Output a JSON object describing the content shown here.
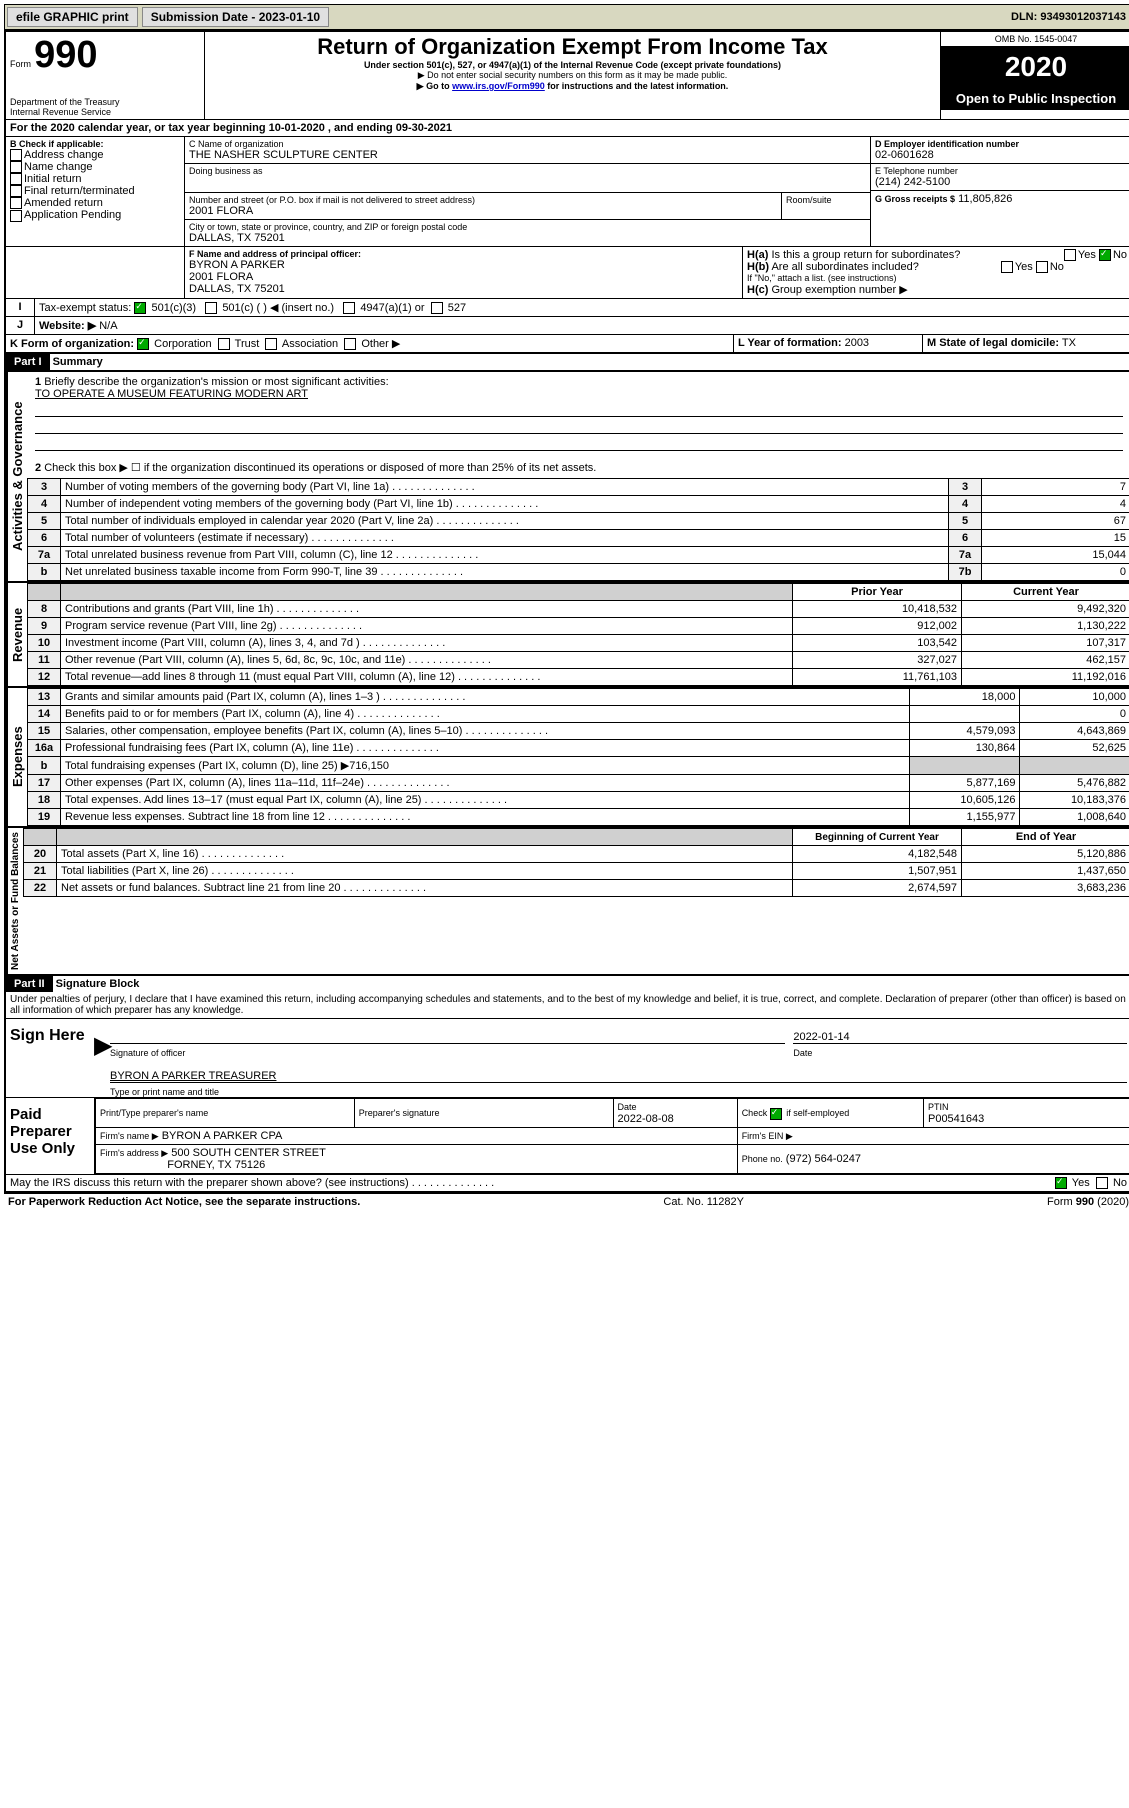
{
  "topbar": {
    "efile": "efile GRAPHIC print",
    "submission_label": "Submission Date - 2023-01-10",
    "dln_label": "DLN: 93493012037143"
  },
  "header": {
    "form_label": "Form",
    "form_number": "990",
    "dept": "Department of the Treasury\nInternal Revenue Service",
    "title": "Return of Organization Exempt From Income Tax",
    "subtitle": "Under section 501(c), 527, or 4947(a)(1) of the Internal Revenue Code (except private foundations)",
    "note1": "▶ Do not enter social security numbers on this form as it may be made public.",
    "note2_pre": "▶ Go to ",
    "note2_link": "www.irs.gov/Form990",
    "note2_post": " for instructions and the latest information.",
    "omb": "OMB No. 1545-0047",
    "year": "2020",
    "open_public": "Open to Public Inspection"
  },
  "line_a": "For the 2020 calendar year, or tax year beginning 10-01-2020   , and ending 09-30-2021",
  "section_b": {
    "label": "B Check if applicable:",
    "items": [
      "Address change",
      "Name change",
      "Initial return",
      "Final return/terminated",
      "Amended return",
      "Application Pending"
    ]
  },
  "section_c": {
    "name_label": "C Name of organization",
    "name": "THE NASHER SCULPTURE CENTER",
    "dba_label": "Doing business as",
    "street_label": "Number and street (or P.O. box if mail is not delivered to street address)",
    "room_label": "Room/suite",
    "street": "2001 FLORA",
    "city_label": "City or town, state or province, country, and ZIP or foreign postal code",
    "city": "DALLAS, TX  75201"
  },
  "section_d": {
    "label": "D Employer identification number",
    "value": "02-0601628"
  },
  "section_e": {
    "label": "E Telephone number",
    "value": "(214) 242-5100"
  },
  "section_g": {
    "label": "G Gross receipts $",
    "value": "11,805,826"
  },
  "section_f": {
    "label": "F Name and address of principal officer:",
    "name": "BYRON A PARKER",
    "street": "2001 FLORA",
    "city": "DALLAS, TX  75201"
  },
  "section_h": {
    "ha": "Is this a group return for subordinates?",
    "hb": "Are all subordinates included?",
    "hb_note": "If \"No,\" attach a list. (see instructions)",
    "hc": "Group exemption number ▶"
  },
  "section_i": {
    "label": "Tax-exempt status:",
    "opt1": "501(c)(3)",
    "opt2": "501(c) (   ) ◀ (insert no.)",
    "opt3": "4947(a)(1) or",
    "opt4": "527"
  },
  "section_j": {
    "label": "Website: ▶",
    "value": "N/A"
  },
  "section_k": {
    "label": "K Form of organization:",
    "opts": [
      "Corporation",
      "Trust",
      "Association",
      "Other ▶"
    ]
  },
  "section_l": {
    "label": "L Year of formation:",
    "value": "2003"
  },
  "section_m": {
    "label": "M State of legal domicile:",
    "value": "TX"
  },
  "part1": {
    "header": "Part I",
    "title": "Summary",
    "mission_label": "Briefly describe the organization's mission or most significant activities:",
    "mission": "TO OPERATE A MUSEUM FEATURING MODERN ART",
    "line2": "Check this box ▶ ☐ if the organization discontinued its operations or disposed of more than 25% of its net assets."
  },
  "governance_label": "Activities & Governance",
  "revenue_label": "Revenue",
  "expenses_label": "Expenses",
  "netassets_label": "Net Assets or Fund Balances",
  "gov_lines": [
    {
      "n": "3",
      "label": "Number of voting members of the governing body (Part VI, line 1a)",
      "box": "3",
      "val": "7"
    },
    {
      "n": "4",
      "label": "Number of independent voting members of the governing body (Part VI, line 1b)",
      "box": "4",
      "val": "4"
    },
    {
      "n": "5",
      "label": "Total number of individuals employed in calendar year 2020 (Part V, line 2a)",
      "box": "5",
      "val": "67"
    },
    {
      "n": "6",
      "label": "Total number of volunteers (estimate if necessary)",
      "box": "6",
      "val": "15"
    },
    {
      "n": "7a",
      "label": "Total unrelated business revenue from Part VIII, column (C), line 12",
      "box": "7a",
      "val": "15,044"
    },
    {
      "n": "b",
      "label": "Net unrelated business taxable income from Form 990-T, line 39",
      "box": "7b",
      "val": "0"
    }
  ],
  "col_headers": {
    "prior": "Prior Year",
    "current": "Current Year"
  },
  "rev_lines": [
    {
      "n": "8",
      "label": "Contributions and grants (Part VIII, line 1h)",
      "p": "10,418,532",
      "c": "9,492,320"
    },
    {
      "n": "9",
      "label": "Program service revenue (Part VIII, line 2g)",
      "p": "912,002",
      "c": "1,130,222"
    },
    {
      "n": "10",
      "label": "Investment income (Part VIII, column (A), lines 3, 4, and 7d )",
      "p": "103,542",
      "c": "107,317"
    },
    {
      "n": "11",
      "label": "Other revenue (Part VIII, column (A), lines 5, 6d, 8c, 9c, 10c, and 11e)",
      "p": "327,027",
      "c": "462,157"
    },
    {
      "n": "12",
      "label": "Total revenue—add lines 8 through 11 (must equal Part VIII, column (A), line 12)",
      "p": "11,761,103",
      "c": "11,192,016"
    }
  ],
  "exp_lines": [
    {
      "n": "13",
      "label": "Grants and similar amounts paid (Part IX, column (A), lines 1–3 )",
      "p": "18,000",
      "c": "10,000"
    },
    {
      "n": "14",
      "label": "Benefits paid to or for members (Part IX, column (A), line 4)",
      "p": "",
      "c": "0"
    },
    {
      "n": "15",
      "label": "Salaries, other compensation, employee benefits (Part IX, column (A), lines 5–10)",
      "p": "4,579,093",
      "c": "4,643,869"
    },
    {
      "n": "16a",
      "label": "Professional fundraising fees (Part IX, column (A), line 11e)",
      "p": "130,864",
      "c": "52,625"
    },
    {
      "n": "b",
      "label": "Total fundraising expenses (Part IX, column (D), line 25) ▶716,150",
      "p": "__SHADE__",
      "c": "__SHADE__"
    },
    {
      "n": "17",
      "label": "Other expenses (Part IX, column (A), lines 11a–11d, 11f–24e)",
      "p": "5,877,169",
      "c": "5,476,882"
    },
    {
      "n": "18",
      "label": "Total expenses. Add lines 13–17 (must equal Part IX, column (A), line 25)",
      "p": "10,605,126",
      "c": "10,183,376"
    },
    {
      "n": "19",
      "label": "Revenue less expenses. Subtract line 18 from line 12",
      "p": "1,155,977",
      "c": "1,008,640"
    }
  ],
  "net_headers": {
    "begin": "Beginning of Current Year",
    "end": "End of Year"
  },
  "net_lines": [
    {
      "n": "20",
      "label": "Total assets (Part X, line 16)",
      "p": "4,182,548",
      "c": "5,120,886"
    },
    {
      "n": "21",
      "label": "Total liabilities (Part X, line 26)",
      "p": "1,507,951",
      "c": "1,437,650"
    },
    {
      "n": "22",
      "label": "Net assets or fund balances. Subtract line 21 from line 20",
      "p": "2,674,597",
      "c": "3,683,236"
    }
  ],
  "part2": {
    "header": "Part II",
    "title": "Signature Block",
    "penalty": "Under penalties of perjury, I declare that I have examined this return, including accompanying schedules and statements, and to the best of my knowledge and belief, it is true, correct, and complete. Declaration of preparer (other than officer) is based on all information of which preparer has any knowledge."
  },
  "sign": {
    "label": "Sign Here",
    "sig_label": "Signature of officer",
    "date_label": "Date",
    "date": "2022-01-14",
    "name": "BYRON A PARKER  TREASURER",
    "name_label": "Type or print name and title"
  },
  "preparer": {
    "label": "Paid Preparer Use Only",
    "print_label": "Print/Type preparer's name",
    "sig_label": "Preparer's signature",
    "date_label": "Date",
    "date": "2022-08-08",
    "check_label": "Check ☑ if self-employed",
    "ptin_label": "PTIN",
    "ptin": "P00541643",
    "firm_name_label": "Firm's name    ▶",
    "firm_name": "BYRON A PARKER CPA",
    "firm_ein_label": "Firm's EIN ▶",
    "firm_addr_label": "Firm's address ▶",
    "firm_addr": "500 SOUTH CENTER STREET",
    "firm_city": "FORNEY, TX  75126",
    "phone_label": "Phone no.",
    "phone": "(972) 564-0247"
  },
  "discuss": {
    "label": "May the IRS discuss this return with the preparer shown above? (see instructions)",
    "yes": "Yes",
    "no": "No"
  },
  "footer": {
    "left": "For Paperwork Reduction Act Notice, see the separate instructions.",
    "mid": "Cat. No. 11282Y",
    "right_pre": "Form ",
    "right_bold": "990",
    "right_post": " (2020)"
  }
}
